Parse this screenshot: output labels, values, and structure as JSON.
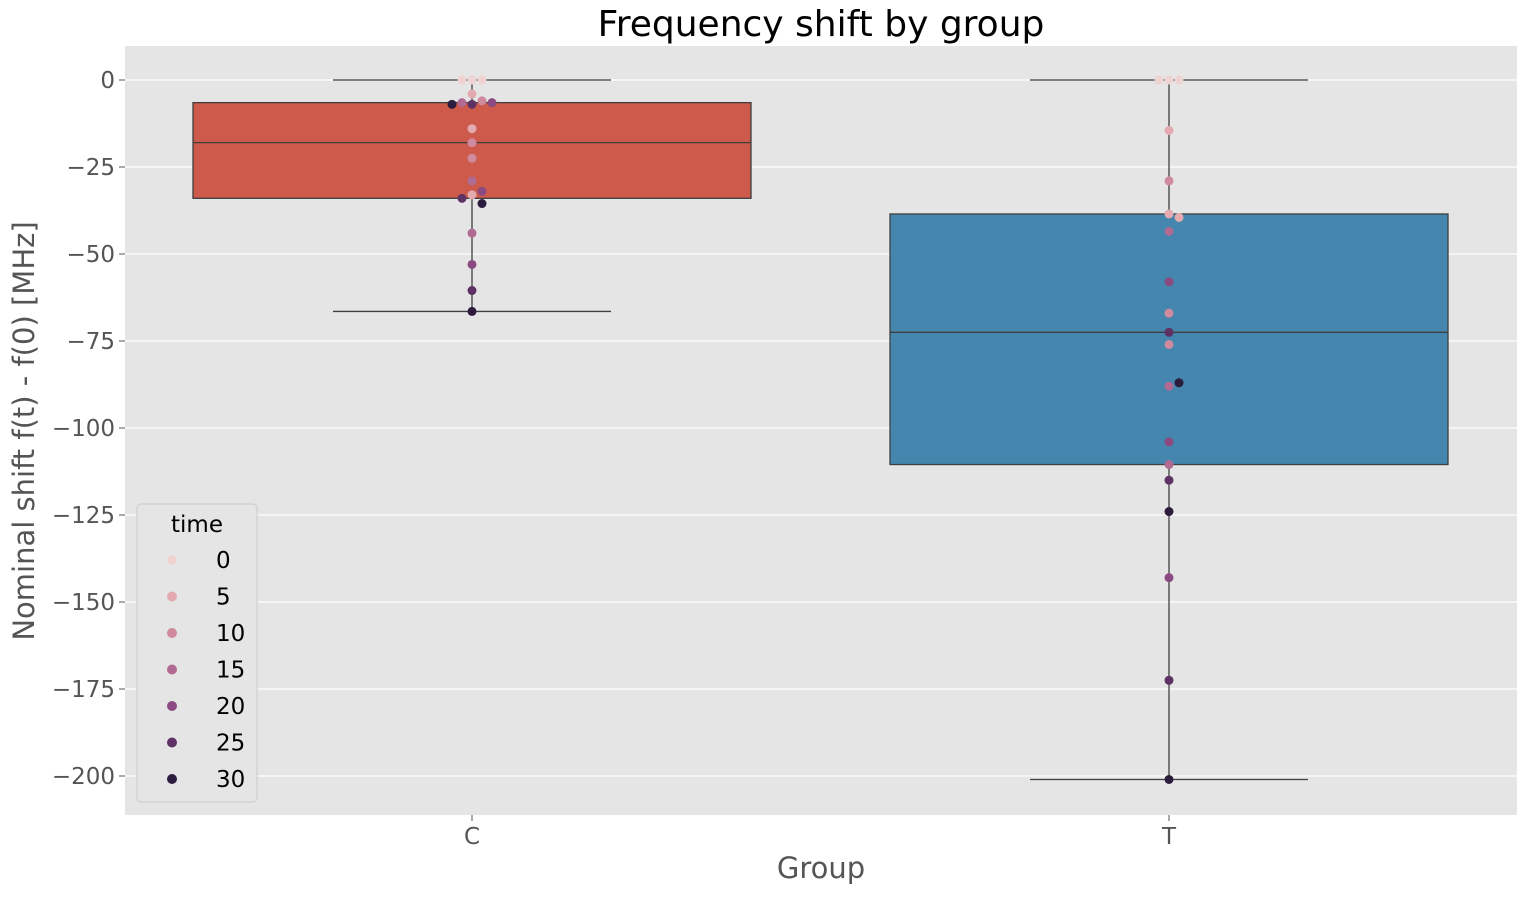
{
  "chart_data": {
    "type": "box",
    "title": "Frequency shift by group",
    "xlabel": "Group",
    "ylabel": "Nominal shift f(t) - f(0) [MHz]",
    "categories": [
      "C",
      "T"
    ],
    "ylim": [
      -210,
      10
    ],
    "yticks": [
      0,
      -25,
      -50,
      -75,
      -100,
      -125,
      -150,
      -175,
      -200
    ],
    "ytick_labels": [
      "0",
      "−25",
      "−50",
      "−75",
      "−100",
      "−125",
      "−150",
      "−175",
      "−200"
    ],
    "grid": true,
    "legend": {
      "title": "time",
      "placement": "lower-left",
      "entries": [
        {
          "label": "0",
          "value": 0
        },
        {
          "label": "5",
          "value": 5
        },
        {
          "label": "10",
          "value": 10
        },
        {
          "label": "15",
          "value": 15
        },
        {
          "label": "20",
          "value": 20
        },
        {
          "label": "25",
          "value": 25
        },
        {
          "label": "30",
          "value": 30
        }
      ]
    },
    "time_colors": {
      "0": "#efd3d0",
      "5": "#e3abaf",
      "10": "#cf8a9d",
      "15": "#b16a92",
      "20": "#8b4b82",
      "25": "#5f3266",
      "30": "#2c1c3d"
    },
    "boxes": [
      {
        "category": "C",
        "color": "#cd5a4a",
        "q1": -34,
        "median": -18,
        "q3": -6.5,
        "whisker_low": -66.5,
        "whisker_high": 0
      },
      {
        "category": "T",
        "color": "#4486ae",
        "q1": -110.5,
        "median": -72.5,
        "q3": -38.5,
        "whisker_low": -201,
        "whisker_high": 0
      }
    ],
    "points": [
      {
        "group": "C",
        "time": 0,
        "value": 0
      },
      {
        "group": "C",
        "time": 0,
        "value": 0
      },
      {
        "group": "C",
        "time": 0,
        "value": 0
      },
      {
        "group": "C",
        "time": 5,
        "value": -4
      },
      {
        "group": "C",
        "time": 5,
        "value": -14
      },
      {
        "group": "C",
        "time": 5,
        "value": -33
      },
      {
        "group": "C",
        "time": 10,
        "value": -6
      },
      {
        "group": "C",
        "time": 10,
        "value": -18
      },
      {
        "group": "C",
        "time": 10,
        "value": -22.5
      },
      {
        "group": "C",
        "time": 15,
        "value": -6.5
      },
      {
        "group": "C",
        "time": 15,
        "value": -29
      },
      {
        "group": "C",
        "time": 15,
        "value": -44
      },
      {
        "group": "C",
        "time": 20,
        "value": -6.5
      },
      {
        "group": "C",
        "time": 20,
        "value": -32
      },
      {
        "group": "C",
        "time": 20,
        "value": -53
      },
      {
        "group": "C",
        "time": 25,
        "value": -7
      },
      {
        "group": "C",
        "time": 25,
        "value": -34
      },
      {
        "group": "C",
        "time": 25,
        "value": -60.5
      },
      {
        "group": "C",
        "time": 30,
        "value": -7
      },
      {
        "group": "C",
        "time": 30,
        "value": -35.5
      },
      {
        "group": "C",
        "time": 30,
        "value": -66.5
      },
      {
        "group": "T",
        "time": 0,
        "value": 0
      },
      {
        "group": "T",
        "time": 0,
        "value": 0
      },
      {
        "group": "T",
        "time": 0,
        "value": 0
      },
      {
        "group": "T",
        "time": 5,
        "value": -14.5
      },
      {
        "group": "T",
        "time": 5,
        "value": -38.5
      },
      {
        "group": "T",
        "time": 5,
        "value": -39.5
      },
      {
        "group": "T",
        "time": 10,
        "value": -29
      },
      {
        "group": "T",
        "time": 10,
        "value": -67
      },
      {
        "group": "T",
        "time": 10,
        "value": -76
      },
      {
        "group": "T",
        "time": 15,
        "value": -43.5
      },
      {
        "group": "T",
        "time": 15,
        "value": -88
      },
      {
        "group": "T",
        "time": 15,
        "value": -110.5
      },
      {
        "group": "T",
        "time": 20,
        "value": -58
      },
      {
        "group": "T",
        "time": 20,
        "value": -104
      },
      {
        "group": "T",
        "time": 20,
        "value": -143
      },
      {
        "group": "T",
        "time": 25,
        "value": -72.5
      },
      {
        "group": "T",
        "time": 25,
        "value": -115
      },
      {
        "group": "T",
        "time": 25,
        "value": -172.5
      },
      {
        "group": "T",
        "time": 30,
        "value": -87
      },
      {
        "group": "T",
        "time": 30,
        "value": -124
      },
      {
        "group": "T",
        "time": 30,
        "value": -201
      }
    ]
  }
}
